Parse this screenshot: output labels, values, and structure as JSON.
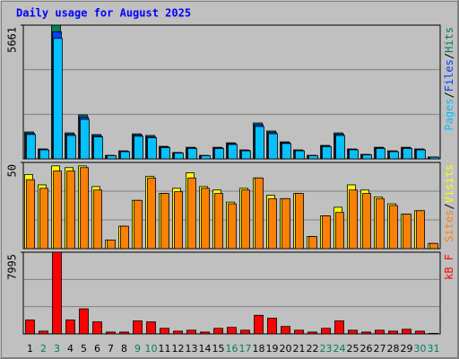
{
  "chart_data": [
    {
      "type": "bar",
      "title": "Daily usage for August 2025",
      "legend_separator": "/",
      "ylim": [
        0,
        5661
      ],
      "yticks": [
        5661
      ],
      "series": [
        {
          "name": "Hits",
          "color": "#00805c",
          "values": [
            1140,
            420,
            5661,
            1100,
            1860,
            1030,
            150,
            340,
            1060,
            990,
            530,
            270,
            490,
            150,
            490,
            680,
            380,
            1520,
            1180,
            720,
            380,
            150,
            570,
            1100,
            420,
            190,
            490,
            340,
            490,
            420,
            80
          ]
        },
        {
          "name": "Files",
          "color": "#0040ff",
          "values": [
            1080,
            400,
            5380,
            1045,
            1770,
            980,
            140,
            320,
            1010,
            940,
            500,
            255,
            465,
            140,
            465,
            645,
            360,
            1445,
            1120,
            685,
            360,
            140,
            540,
            1045,
            400,
            180,
            465,
            320,
            465,
            400,
            75
          ]
        },
        {
          "name": "Pages",
          "color": "#00c0ff",
          "values": [
            1030,
            380,
            5100,
            990,
            1670,
            930,
            135,
            305,
            955,
            890,
            475,
            245,
            440,
            135,
            440,
            610,
            340,
            1370,
            1060,
            650,
            340,
            135,
            515,
            990,
            380,
            170,
            440,
            305,
            440,
            380,
            70
          ]
        }
      ]
    },
    {
      "type": "bar",
      "legend_separator": "/",
      "ylim": [
        0,
        50
      ],
      "yticks": [
        50
      ],
      "series": [
        {
          "name": "Visits",
          "color": "#ffff00",
          "values": [
            43,
            37,
            48,
            47,
            48,
            36,
            5,
            13,
            28,
            42,
            32,
            35,
            44,
            36,
            34,
            27,
            35,
            41,
            31,
            29,
            32,
            7,
            19,
            24,
            37,
            34,
            30,
            26,
            20,
            22,
            3
          ]
        },
        {
          "name": "Sites",
          "color": "#ff8000",
          "values": [
            40,
            35,
            45,
            45,
            47,
            34,
            5,
            13,
            28,
            41,
            32,
            33,
            41,
            35,
            32,
            26,
            34,
            41,
            29,
            29,
            32,
            7,
            19,
            21,
            34,
            32,
            29,
            25,
            20,
            22,
            3
          ]
        }
      ]
    },
    {
      "type": "bar",
      "ylim": [
        0,
        7995
      ],
      "yticks": [
        7995
      ],
      "categories": [
        "1",
        "2",
        "3",
        "4",
        "5",
        "6",
        "7",
        "8",
        "9",
        "10",
        "11",
        "12",
        "13",
        "14",
        "15",
        "16",
        "17",
        "18",
        "19",
        "20",
        "21",
        "22",
        "23",
        "24",
        "25",
        "26",
        "27",
        "28",
        "29",
        "30",
        "31"
      ],
      "category_colors": [
        "#000000",
        "#00805c",
        "#00805c",
        "#000000",
        "#000000",
        "#000000",
        "#000000",
        "#000000",
        "#00805c",
        "#00805c",
        "#000000",
        "#000000",
        "#000000",
        "#000000",
        "#000000",
        "#00805c",
        "#00805c",
        "#000000",
        "#000000",
        "#000000",
        "#000000",
        "#000000",
        "#00805c",
        "#00805c",
        "#000000",
        "#000000",
        "#000000",
        "#000000",
        "#000000",
        "#00805c",
        "#00805c"
      ],
      "series": [
        {
          "name": "kB F",
          "color": "#ff0000",
          "values": [
            1360,
            270,
            7995,
            1360,
            2450,
            1180,
            180,
            180,
            1270,
            1180,
            545,
            270,
            360,
            180,
            545,
            640,
            360,
            1820,
            1540,
            730,
            360,
            180,
            545,
            1270,
            360,
            180,
            360,
            270,
            450,
            270,
            50
          ]
        }
      ]
    }
  ]
}
